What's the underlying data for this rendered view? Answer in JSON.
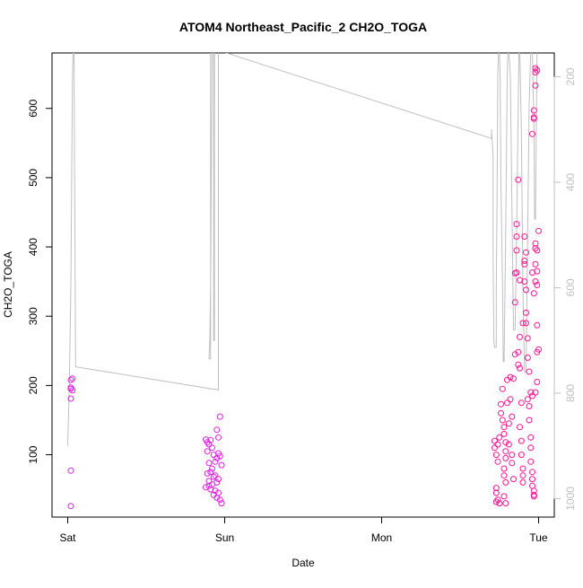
{
  "chart_data": {
    "type": "scatter",
    "title": "ATOM4 Northeast_Pacific_2 CH2O_TOGA",
    "xlabel": "Date",
    "ylabel": "CH2O_TOGA",
    "x_axis": {
      "ticks": [
        {
          "label": "Sat",
          "value": 0
        },
        {
          "label": "Sun",
          "value": 1
        },
        {
          "label": "Mon",
          "value": 2
        },
        {
          "label": "Tue",
          "value": 3
        }
      ],
      "range": [
        -0.1,
        3.1
      ]
    },
    "y_left": {
      "ticks": [
        100,
        200,
        300,
        400,
        500,
        600
      ],
      "range": [
        10,
        680
      ]
    },
    "y_right": {
      "ticks": [
        200,
        400,
        600,
        800,
        1000
      ],
      "range": [
        1035,
        155
      ],
      "reversed": true
    },
    "grid": false,
    "legend": "none",
    "colors": {
      "points_early": "#e020e0",
      "points_late": "#ff1493",
      "pressure_line": "#bfbfbf",
      "axis": "#000000"
    },
    "series": [
      {
        "kind": "points",
        "axis": "left",
        "values": [
          [
            0.02,
            208
          ],
          [
            0.03,
            210
          ],
          [
            0.02,
            197
          ],
          [
            0.02,
            195
          ],
          [
            0.03,
            193
          ],
          [
            0.02,
            181
          ],
          [
            0.02,
            77
          ],
          [
            0.02,
            26
          ],
          [
            0.88,
            122
          ],
          [
            0.89,
            118
          ],
          [
            0.9,
            115
          ],
          [
            0.91,
            121
          ],
          [
            0.92,
            110
          ],
          [
            0.89,
            105
          ],
          [
            0.93,
            100
          ],
          [
            0.95,
            95
          ],
          [
            0.96,
            102
          ],
          [
            0.94,
            90
          ],
          [
            0.9,
            88
          ],
          [
            0.92,
            80
          ],
          [
            0.91,
            75
          ],
          [
            0.89,
            73
          ],
          [
            0.94,
            70
          ],
          [
            0.96,
            65
          ],
          [
            0.95,
            60
          ],
          [
            0.92,
            57
          ],
          [
            0.9,
            55
          ],
          [
            0.88,
            53
          ],
          [
            0.91,
            50
          ],
          [
            0.94,
            48
          ],
          [
            0.96,
            45
          ],
          [
            0.93,
            42
          ],
          [
            0.95,
            38
          ],
          [
            0.97,
            35
          ],
          [
            0.98,
            30
          ],
          [
            0.97,
            155
          ],
          [
            0.95,
            136
          ],
          [
            0.96,
            125
          ],
          [
            0.97,
            98
          ],
          [
            0.98,
            85
          ],
          [
            0.93,
            68
          ],
          [
            0.9,
            62
          ],
          [
            2.72,
            120
          ],
          [
            2.72,
            110
          ],
          [
            2.73,
            100
          ],
          [
            2.74,
            90
          ],
          [
            2.73,
            52
          ],
          [
            2.73,
            45
          ],
          [
            2.74,
            35
          ],
          [
            2.73,
            32
          ],
          [
            2.75,
            30
          ],
          [
            2.74,
            115
          ],
          [
            2.75,
            125
          ],
          [
            2.76,
            173
          ],
          [
            2.76,
            160
          ],
          [
            2.77,
            195
          ],
          [
            2.77,
            150
          ],
          [
            2.78,
            140
          ],
          [
            2.78,
            130
          ],
          [
            2.79,
            118
          ],
          [
            2.79,
            105
          ],
          [
            2.79,
            95
          ],
          [
            2.78,
            80
          ],
          [
            2.78,
            70
          ],
          [
            2.79,
            60
          ],
          [
            2.78,
            40
          ],
          [
            2.79,
            30
          ],
          [
            2.8,
            208
          ],
          [
            2.8,
            175
          ],
          [
            2.81,
            145
          ],
          [
            2.81,
            115
          ],
          [
            2.82,
            212
          ],
          [
            2.82,
            180
          ],
          [
            2.83,
            155
          ],
          [
            2.83,
            100
          ],
          [
            2.83,
            88
          ],
          [
            2.84,
            65
          ],
          [
            2.84,
            210
          ],
          [
            2.85,
            245
          ],
          [
            2.85,
            320
          ],
          [
            2.85,
            362
          ],
          [
            2.86,
            395
          ],
          [
            2.86,
            415
          ],
          [
            2.86,
            433
          ],
          [
            2.87,
            497
          ],
          [
            2.87,
            248
          ],
          [
            2.87,
            230
          ],
          [
            2.88,
            270
          ],
          [
            2.88,
            225
          ],
          [
            2.88,
            140
          ],
          [
            2.89,
            175
          ],
          [
            2.89,
            120
          ],
          [
            2.89,
            100
          ],
          [
            2.9,
            80
          ],
          [
            2.9,
            70
          ],
          [
            2.9,
            60
          ],
          [
            2.91,
            375
          ],
          [
            2.91,
            350
          ],
          [
            2.92,
            338
          ],
          [
            2.92,
            305
          ],
          [
            2.92,
            290
          ],
          [
            2.93,
            268
          ],
          [
            2.93,
            240
          ],
          [
            2.93,
            180
          ],
          [
            2.94,
            170
          ],
          [
            2.94,
            150
          ],
          [
            2.95,
            125
          ],
          [
            2.95,
            110
          ],
          [
            2.95,
            90
          ],
          [
            2.96,
            75
          ],
          [
            2.96,
            65
          ],
          [
            2.96,
            55
          ],
          [
            2.97,
            48
          ],
          [
            2.97,
            42
          ],
          [
            2.97,
            40
          ],
          [
            2.91,
            415
          ],
          [
            2.92,
            392
          ],
          [
            2.91,
            380
          ],
          [
            2.9,
            290
          ],
          [
            2.86,
            363
          ],
          [
            2.88,
            352
          ],
          [
            2.94,
            220
          ],
          [
            2.95,
            190
          ],
          [
            2.96,
            185
          ],
          [
            2.96,
            563
          ],
          [
            2.97,
            585
          ],
          [
            2.97,
            597
          ],
          [
            2.98,
            633
          ],
          [
            2.98,
            652
          ],
          [
            2.98,
            658
          ],
          [
            2.99,
            655
          ],
          [
            2.97,
            587
          ],
          [
            2.98,
            405
          ],
          [
            2.99,
            395
          ],
          [
            2.98,
            375
          ],
          [
            2.99,
            365
          ],
          [
            2.98,
            350
          ],
          [
            2.99,
            345
          ],
          [
            3.0,
            423
          ],
          [
            2.99,
            287
          ],
          [
            3.0,
            252
          ],
          [
            2.99,
            248
          ],
          [
            2.97,
            333
          ],
          [
            2.96,
            363
          ],
          [
            2.98,
            398
          ],
          [
            2.99,
            205
          ],
          [
            2.98,
            190
          ]
        ]
      },
      {
        "kind": "line",
        "axis": "right",
        "values": [
          [
            0.0,
            900
          ],
          [
            0.01,
            784
          ],
          [
            0.02,
            600
          ],
          [
            0.025,
            400
          ],
          [
            0.03,
            200
          ],
          [
            0.035,
            150
          ],
          [
            0.04,
            150
          ],
          [
            0.05,
            750
          ],
          [
            0.96,
            794
          ],
          [
            0.96,
            150
          ],
          [
            0.97,
            150
          ],
          [
            0.98,
            150
          ],
          [
            0.92,
            150
          ],
          [
            0.91,
            600
          ],
          [
            0.905,
            700
          ],
          [
            0.9,
            735
          ],
          [
            0.91,
            735
          ],
          [
            0.91,
            150
          ],
          [
            0.93,
            150
          ],
          [
            0.93,
            700
          ],
          [
            0.935,
            700
          ],
          [
            0.935,
            150
          ],
          [
            0.95,
            150
          ],
          [
            0.955,
            150
          ],
          [
            0.96,
            150
          ],
          [
            2.7,
            317
          ],
          [
            2.7,
            300
          ],
          [
            2.71,
            350
          ],
          [
            2.71,
            550
          ],
          [
            2.715,
            700
          ],
          [
            2.72,
            713
          ],
          [
            2.73,
            713
          ],
          [
            2.73,
            600
          ],
          [
            2.735,
            450
          ],
          [
            2.74,
            200
          ],
          [
            2.745,
            150
          ],
          [
            2.75,
            150
          ],
          [
            2.755,
            200
          ],
          [
            2.76,
            400
          ],
          [
            2.77,
            600
          ],
          [
            2.775,
            740
          ],
          [
            2.78,
            740
          ],
          [
            2.79,
            500
          ],
          [
            2.8,
            200
          ],
          [
            2.805,
            150
          ],
          [
            2.81,
            150
          ],
          [
            2.82,
            200
          ],
          [
            2.83,
            450
          ],
          [
            2.84,
            680
          ],
          [
            2.85,
            680
          ],
          [
            2.86,
            500
          ],
          [
            2.87,
            250
          ],
          [
            2.875,
            150
          ],
          [
            2.88,
            150
          ],
          [
            2.89,
            300
          ],
          [
            2.9,
            600
          ],
          [
            2.91,
            760
          ],
          [
            2.92,
            760
          ],
          [
            2.93,
            500
          ],
          [
            2.94,
            250
          ],
          [
            2.95,
            150
          ],
          [
            2.96,
            150
          ],
          [
            2.97,
            300
          ],
          [
            2.975,
            470
          ],
          [
            2.98,
            470
          ],
          [
            2.985,
            300
          ],
          [
            2.99,
            150
          ],
          [
            3.0,
            150
          ]
        ]
      }
    ]
  }
}
